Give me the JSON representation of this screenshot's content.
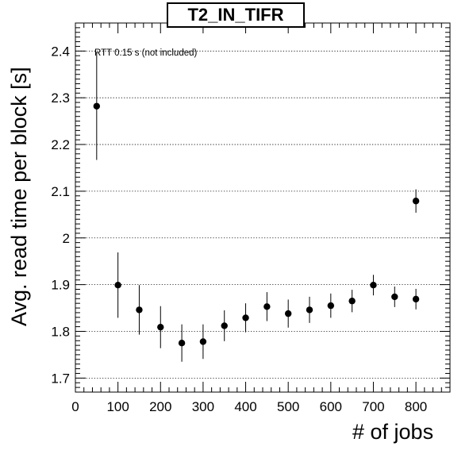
{
  "chart_data": {
    "type": "scatter",
    "title": "T2_IN_TIFR",
    "xlabel": "# of jobs",
    "ylabel": "Avg. read time per block [s]",
    "annotation": "RTT 0.15 s (not included)",
    "xlim": [
      0,
      880
    ],
    "ylim": [
      1.67,
      2.46
    ],
    "x_ticks": [
      0,
      100,
      200,
      300,
      400,
      500,
      600,
      700,
      800
    ],
    "x_tick_labels": [
      "0",
      "100",
      "200",
      "300",
      "400",
      "500",
      "600",
      "700",
      "800"
    ],
    "y_ticks": [
      1.7,
      1.8,
      1.9,
      2.0,
      2.1,
      2.2,
      2.3,
      2.4
    ],
    "y_tick_labels": [
      "1.7",
      "1.8",
      "1.9",
      "2",
      "2.1",
      "2.2",
      "2.3",
      "2.4"
    ],
    "grid": "horizontal dotted",
    "series": [
      {
        "marker_color": "#000000",
        "points": [
          {
            "x": 50,
            "y": 2.282,
            "err": 0.115
          },
          {
            "x": 100,
            "y": 1.899,
            "err": 0.07
          },
          {
            "x": 150,
            "y": 1.846,
            "err": 0.053
          },
          {
            "x": 200,
            "y": 1.809,
            "err": 0.045
          },
          {
            "x": 250,
            "y": 1.775,
            "err": 0.04
          },
          {
            "x": 300,
            "y": 1.778,
            "err": 0.037
          },
          {
            "x": 350,
            "y": 1.812,
            "err": 0.033
          },
          {
            "x": 400,
            "y": 1.829,
            "err": 0.031
          },
          {
            "x": 450,
            "y": 1.853,
            "err": 0.031
          },
          {
            "x": 500,
            "y": 1.838,
            "err": 0.03
          },
          {
            "x": 550,
            "y": 1.846,
            "err": 0.028
          },
          {
            "x": 600,
            "y": 1.855,
            "err": 0.026
          },
          {
            "x": 650,
            "y": 1.865,
            "err": 0.024
          },
          {
            "x": 700,
            "y": 1.899,
            "err": 0.022
          },
          {
            "x": 750,
            "y": 1.874,
            "err": 0.022
          },
          {
            "x": 800,
            "y": 1.869,
            "err": 0.022
          },
          {
            "x": 800,
            "y": 2.079,
            "err": 0.025
          }
        ]
      }
    ]
  }
}
